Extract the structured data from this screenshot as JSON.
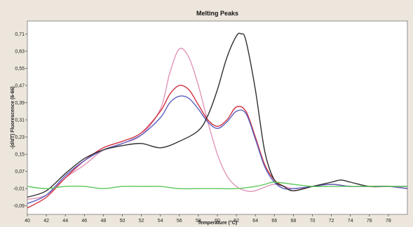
{
  "chart_data": {
    "type": "line",
    "title": "Melting Peaks",
    "xlabel": "Temperature (°C)",
    "ylabel": "-(d/dT) Fluorescence (6-66)",
    "xlim": [
      40,
      80
    ],
    "ylim": [
      -0.13,
      0.77
    ],
    "x_ticks": [
      "40",
      "42",
      "44",
      "46",
      "48",
      "50",
      "52",
      "54",
      "56",
      "58",
      "60",
      "62",
      "64",
      "66",
      "68",
      "70",
      "72",
      "74",
      "76",
      "78"
    ],
    "x_tick_values": [
      40,
      42,
      44,
      46,
      48,
      50,
      52,
      54,
      56,
      58,
      60,
      62,
      64,
      66,
      68,
      70,
      72,
      74,
      76,
      78
    ],
    "y_ticks": [
      "0,71",
      "0,63",
      "0,55",
      "0,47",
      "0,39",
      "0,31",
      "0,23",
      "0,15",
      "0,07",
      "-0,01",
      "-0,09"
    ],
    "y_tick_values": [
      0.71,
      0.63,
      0.55,
      0.47,
      0.39,
      0.31,
      0.23,
      0.15,
      0.07,
      -0.01,
      -0.09
    ],
    "grid": false,
    "series": [
      {
        "color": "#e096b8",
        "x": [
          40,
          42,
          44,
          46,
          48,
          50,
          52,
          54,
          55,
          56,
          57,
          58,
          59,
          60,
          61,
          62,
          63,
          64,
          66,
          68,
          70,
          72,
          74,
          76,
          78,
          80
        ],
        "y": [
          -0.06,
          -0.04,
          0.04,
          0.1,
          0.17,
          0.2,
          0.24,
          0.36,
          0.53,
          0.64,
          0.6,
          0.47,
          0.3,
          0.15,
          0.05,
          0.0,
          -0.02,
          -0.02,
          0.01,
          -0.01,
          0.0,
          0.01,
          0.0,
          0.0,
          0.0,
          -0.01
        ]
      },
      {
        "color": "#d03040",
        "x": [
          40,
          42,
          44,
          46,
          48,
          50,
          52,
          54,
          55,
          56,
          57,
          58,
          59,
          60,
          61,
          62,
          63,
          64,
          65,
          66,
          67,
          68,
          70,
          72,
          74,
          76,
          78,
          80
        ],
        "y": [
          -0.1,
          -0.05,
          0.04,
          0.12,
          0.18,
          0.21,
          0.25,
          0.35,
          0.43,
          0.47,
          0.45,
          0.38,
          0.31,
          0.28,
          0.31,
          0.37,
          0.35,
          0.23,
          0.1,
          0.03,
          0.0,
          -0.02,
          0.0,
          0.01,
          0.0,
          0.0,
          0.0,
          -0.01
        ]
      },
      {
        "color": "#5a60c0",
        "x": [
          40,
          42,
          44,
          46,
          48,
          50,
          52,
          54,
          55,
          56,
          57,
          58,
          59,
          60,
          61,
          62,
          63,
          64,
          65,
          66,
          67,
          68,
          70,
          72,
          74,
          76,
          78,
          80
        ],
        "y": [
          -0.08,
          -0.04,
          0.05,
          0.12,
          0.17,
          0.2,
          0.24,
          0.32,
          0.39,
          0.42,
          0.41,
          0.36,
          0.3,
          0.27,
          0.3,
          0.35,
          0.34,
          0.22,
          0.09,
          0.02,
          -0.01,
          -0.01,
          0.0,
          0.01,
          0.0,
          0.0,
          0.0,
          -0.01
        ]
      },
      {
        "color": "#303030",
        "x": [
          40,
          42,
          44,
          46,
          48,
          50,
          52,
          54,
          56,
          58,
          59,
          60,
          61,
          62,
          62.5,
          63,
          64,
          65,
          66,
          67,
          68,
          70,
          72,
          73,
          74,
          76,
          78,
          80
        ],
        "y": [
          -0.05,
          -0.02,
          0.06,
          0.13,
          0.17,
          0.19,
          0.2,
          0.18,
          0.21,
          0.26,
          0.33,
          0.45,
          0.6,
          0.7,
          0.71,
          0.68,
          0.45,
          0.16,
          0.03,
          0.0,
          -0.02,
          0.0,
          0.02,
          0.03,
          0.02,
          0.0,
          0.0,
          0.0
        ]
      },
      {
        "color": "#5cc85c",
        "x": [
          40,
          42,
          44,
          46,
          48,
          50,
          52,
          54,
          56,
          58,
          60,
          62,
          64,
          65,
          66,
          68,
          70,
          72,
          74,
          76,
          78,
          80
        ],
        "y": [
          0.0,
          -0.01,
          0.0,
          0.0,
          -0.01,
          0.0,
          0.0,
          0.0,
          -0.01,
          -0.01,
          -0.01,
          -0.01,
          0.0,
          0.01,
          0.02,
          0.01,
          0.0,
          0.0,
          0.0,
          0.0,
          0.0,
          0.0
        ]
      }
    ]
  }
}
